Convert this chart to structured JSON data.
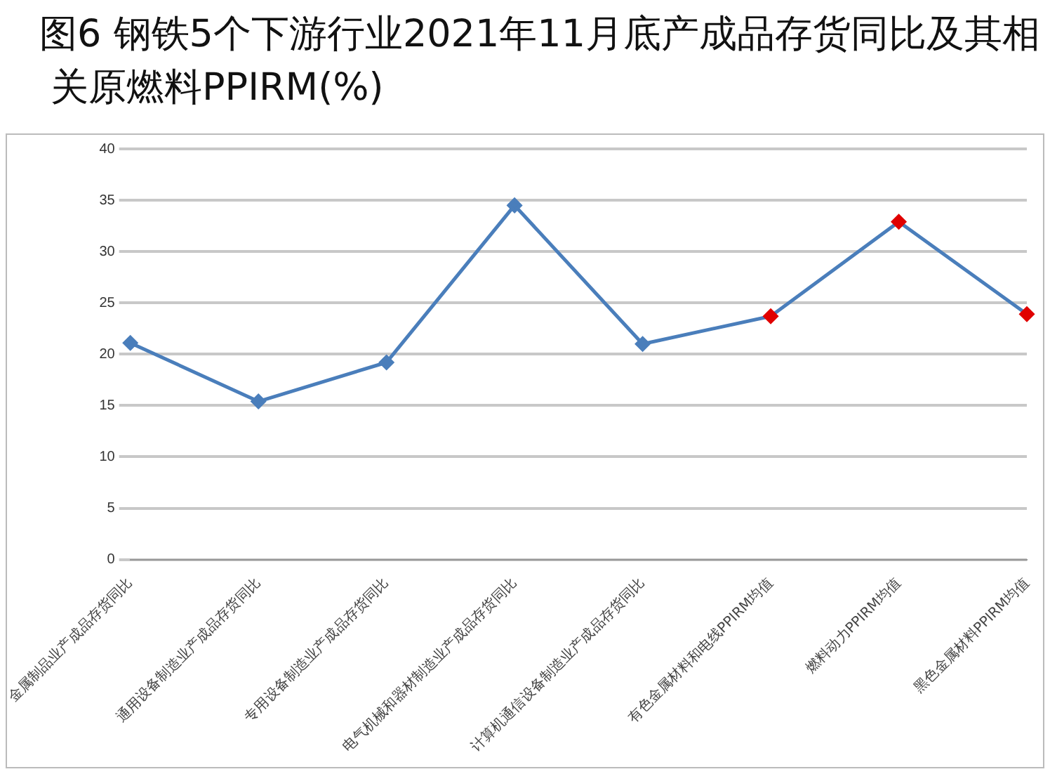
{
  "chart_data": {
    "type": "line",
    "title": "图6  钢铁5个下游行业2021年11月底产成品存货同比及其相关原燃料PPIRM(%)",
    "categories": [
      "金属制品业产成品存货同比",
      "通用设备制造业产成品存货同比",
      "专用设备制造业产成品存货同比",
      "电气机械和器材制造业产成品存货同比",
      "计算机通信设备制造业产成品存货同比",
      "有色金属材料和电线PPIRM均值",
      "燃料动力PPIRM均值",
      "黑色金属材料PPIRM均值"
    ],
    "series": [
      {
        "color": "#4a7ebb",
        "colors": [
          "#4a7ebb",
          "#4a7ebb",
          "#4a7ebb",
          "#4a7ebb",
          "#4a7ebb",
          "#e00000",
          "#e00000",
          "#e00000"
        ],
        "values": [
          21.1,
          15.4,
          19.2,
          34.5,
          21,
          23.7,
          32.9,
          23.9
        ]
      }
    ],
    "ylim": [
      0,
      40
    ],
    "yticks": [
      0,
      5,
      10,
      15,
      20,
      25,
      30,
      35,
      40
    ],
    "grid": "y",
    "legend": false,
    "marker": "diamond",
    "line_style": "solid"
  }
}
